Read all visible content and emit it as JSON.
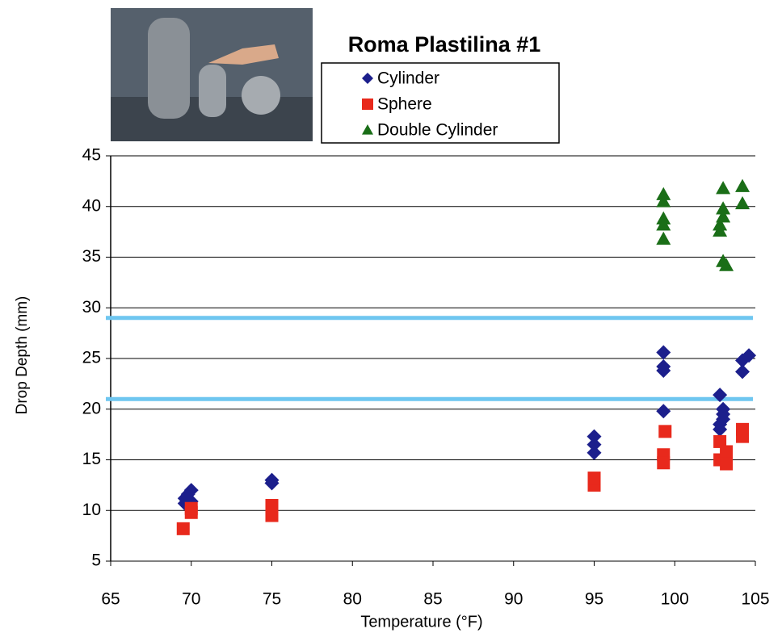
{
  "chart_data": {
    "type": "scatter",
    "title": "Roma Plastilina #1",
    "x_label": "Temperature (°F)",
    "y_label": "Drop Depth (mm)",
    "xlim": [
      65,
      105
    ],
    "xticks": [
      65,
      70,
      75,
      80,
      85,
      90,
      95,
      100,
      105
    ],
    "ylim": [
      5,
      45
    ],
    "yticks": [
      5,
      10,
      15,
      20,
      25,
      30,
      35,
      40,
      45
    ],
    "grid": true,
    "hlines": {
      "values": [
        29,
        21
      ],
      "color": "#6ec6f0"
    },
    "series": [
      {
        "name": "Cylinder",
        "color": "#1c1f8c",
        "marker": "diamond",
        "x": [
          69.6,
          69.8,
          70,
          69.6,
          70,
          75,
          75,
          95,
          95,
          95,
          99.3,
          99.3,
          99.3,
          99.3,
          102.8,
          103,
          103,
          103,
          102.8,
          102.8,
          104.2,
          104.2,
          104.6
        ],
        "values": [
          11.2,
          11.6,
          12,
          10.7,
          10.9,
          12.7,
          13,
          17.3,
          16.5,
          15.7,
          25.6,
          24.2,
          23.8,
          19.8,
          21.4,
          20,
          19.5,
          19,
          18.5,
          18,
          23.7,
          24.8,
          25.3
        ]
      },
      {
        "name": "Sphere",
        "color": "#e8291c",
        "marker": "square",
        "x": [
          69.5,
          70,
          70,
          75,
          75,
          95,
          95,
          99.4,
          99.3,
          99.3,
          102.8,
          102.8,
          103.2,
          103.2,
          104.2,
          104.2
        ],
        "values": [
          8.2,
          9.8,
          10.2,
          9.5,
          10.5,
          12.5,
          13.2,
          17.8,
          15.5,
          14.7,
          16.8,
          15,
          15.8,
          14.6,
          18,
          17.3
        ]
      },
      {
        "name": "Double Cylinder",
        "color": "#1a6e17",
        "marker": "triangle",
        "x": [
          99.3,
          99.3,
          99.3,
          99.3,
          99.3,
          102.8,
          102.8,
          103,
          103,
          103,
          103,
          103.2,
          104.2,
          104.2
        ],
        "values": [
          41.2,
          40.5,
          38.8,
          38.2,
          36.8,
          37.6,
          38.2,
          39,
          39.8,
          41.8,
          34.6,
          34.2,
          42,
          40.3
        ]
      }
    ]
  }
}
